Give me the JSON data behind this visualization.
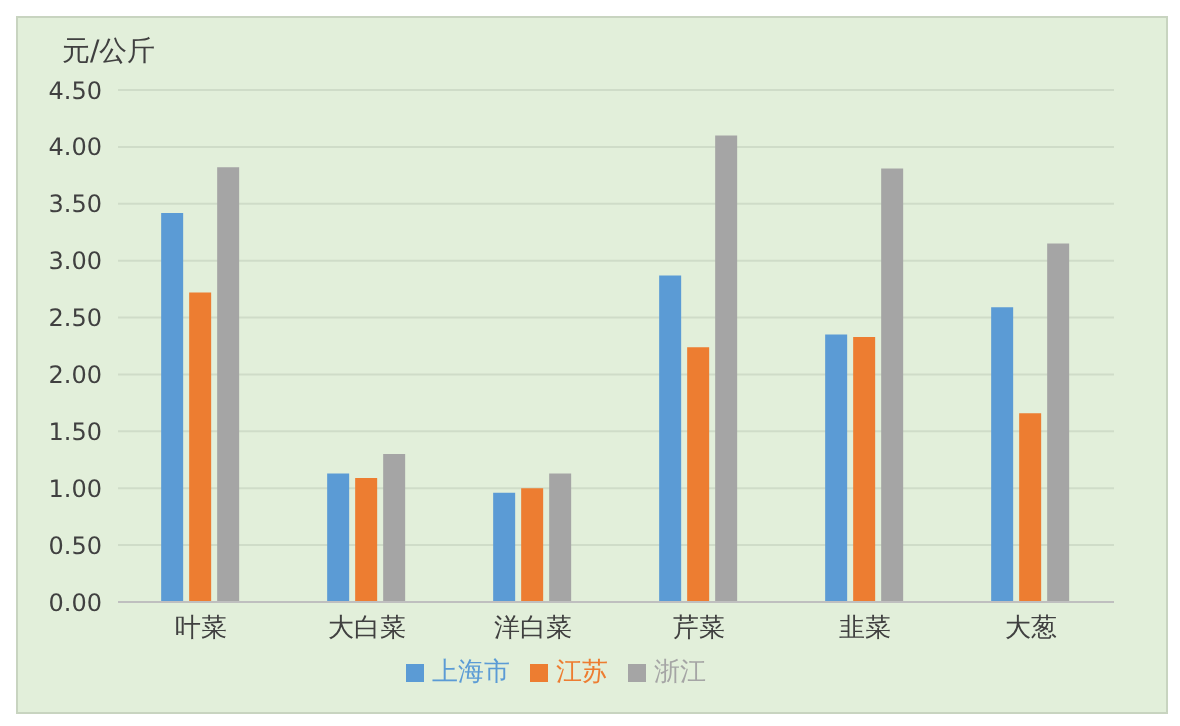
{
  "chart_data": {
    "type": "bar",
    "ylabel": "元/公斤",
    "categories": [
      "叶菜",
      "大白菜",
      "洋白菜",
      "芹菜",
      "韭菜",
      "大葱"
    ],
    "series": [
      {
        "name": "上海市",
        "color": "#5b9bd5",
        "values": [
          3.42,
          1.13,
          0.96,
          2.87,
          2.35,
          2.59
        ]
      },
      {
        "name": "江苏",
        "color": "#ed7d31",
        "values": [
          2.72,
          1.09,
          1.0,
          2.24,
          2.33,
          1.66
        ]
      },
      {
        "name": "浙江",
        "color": "#a5a5a5",
        "values": [
          3.82,
          1.3,
          1.13,
          4.1,
          3.81,
          3.15
        ]
      }
    ],
    "ylim": [
      0,
      4.5
    ],
    "yticks": [
      {
        "value": 0,
        "label": "0.00"
      },
      {
        "value": 0.5,
        "label": "0.50"
      },
      {
        "value": 1,
        "label": "1.00"
      },
      {
        "value": 1.5,
        "label": "1.50"
      },
      {
        "value": 2,
        "label": "2.00"
      },
      {
        "value": 2.5,
        "label": "2.50"
      },
      {
        "value": 3,
        "label": "3.00"
      },
      {
        "value": 3.5,
        "label": "3.50"
      },
      {
        "value": 4,
        "label": "4.00"
      },
      {
        "value": 4.5,
        "label": "4.50"
      }
    ],
    "grid": "y",
    "legend": "bottom"
  }
}
